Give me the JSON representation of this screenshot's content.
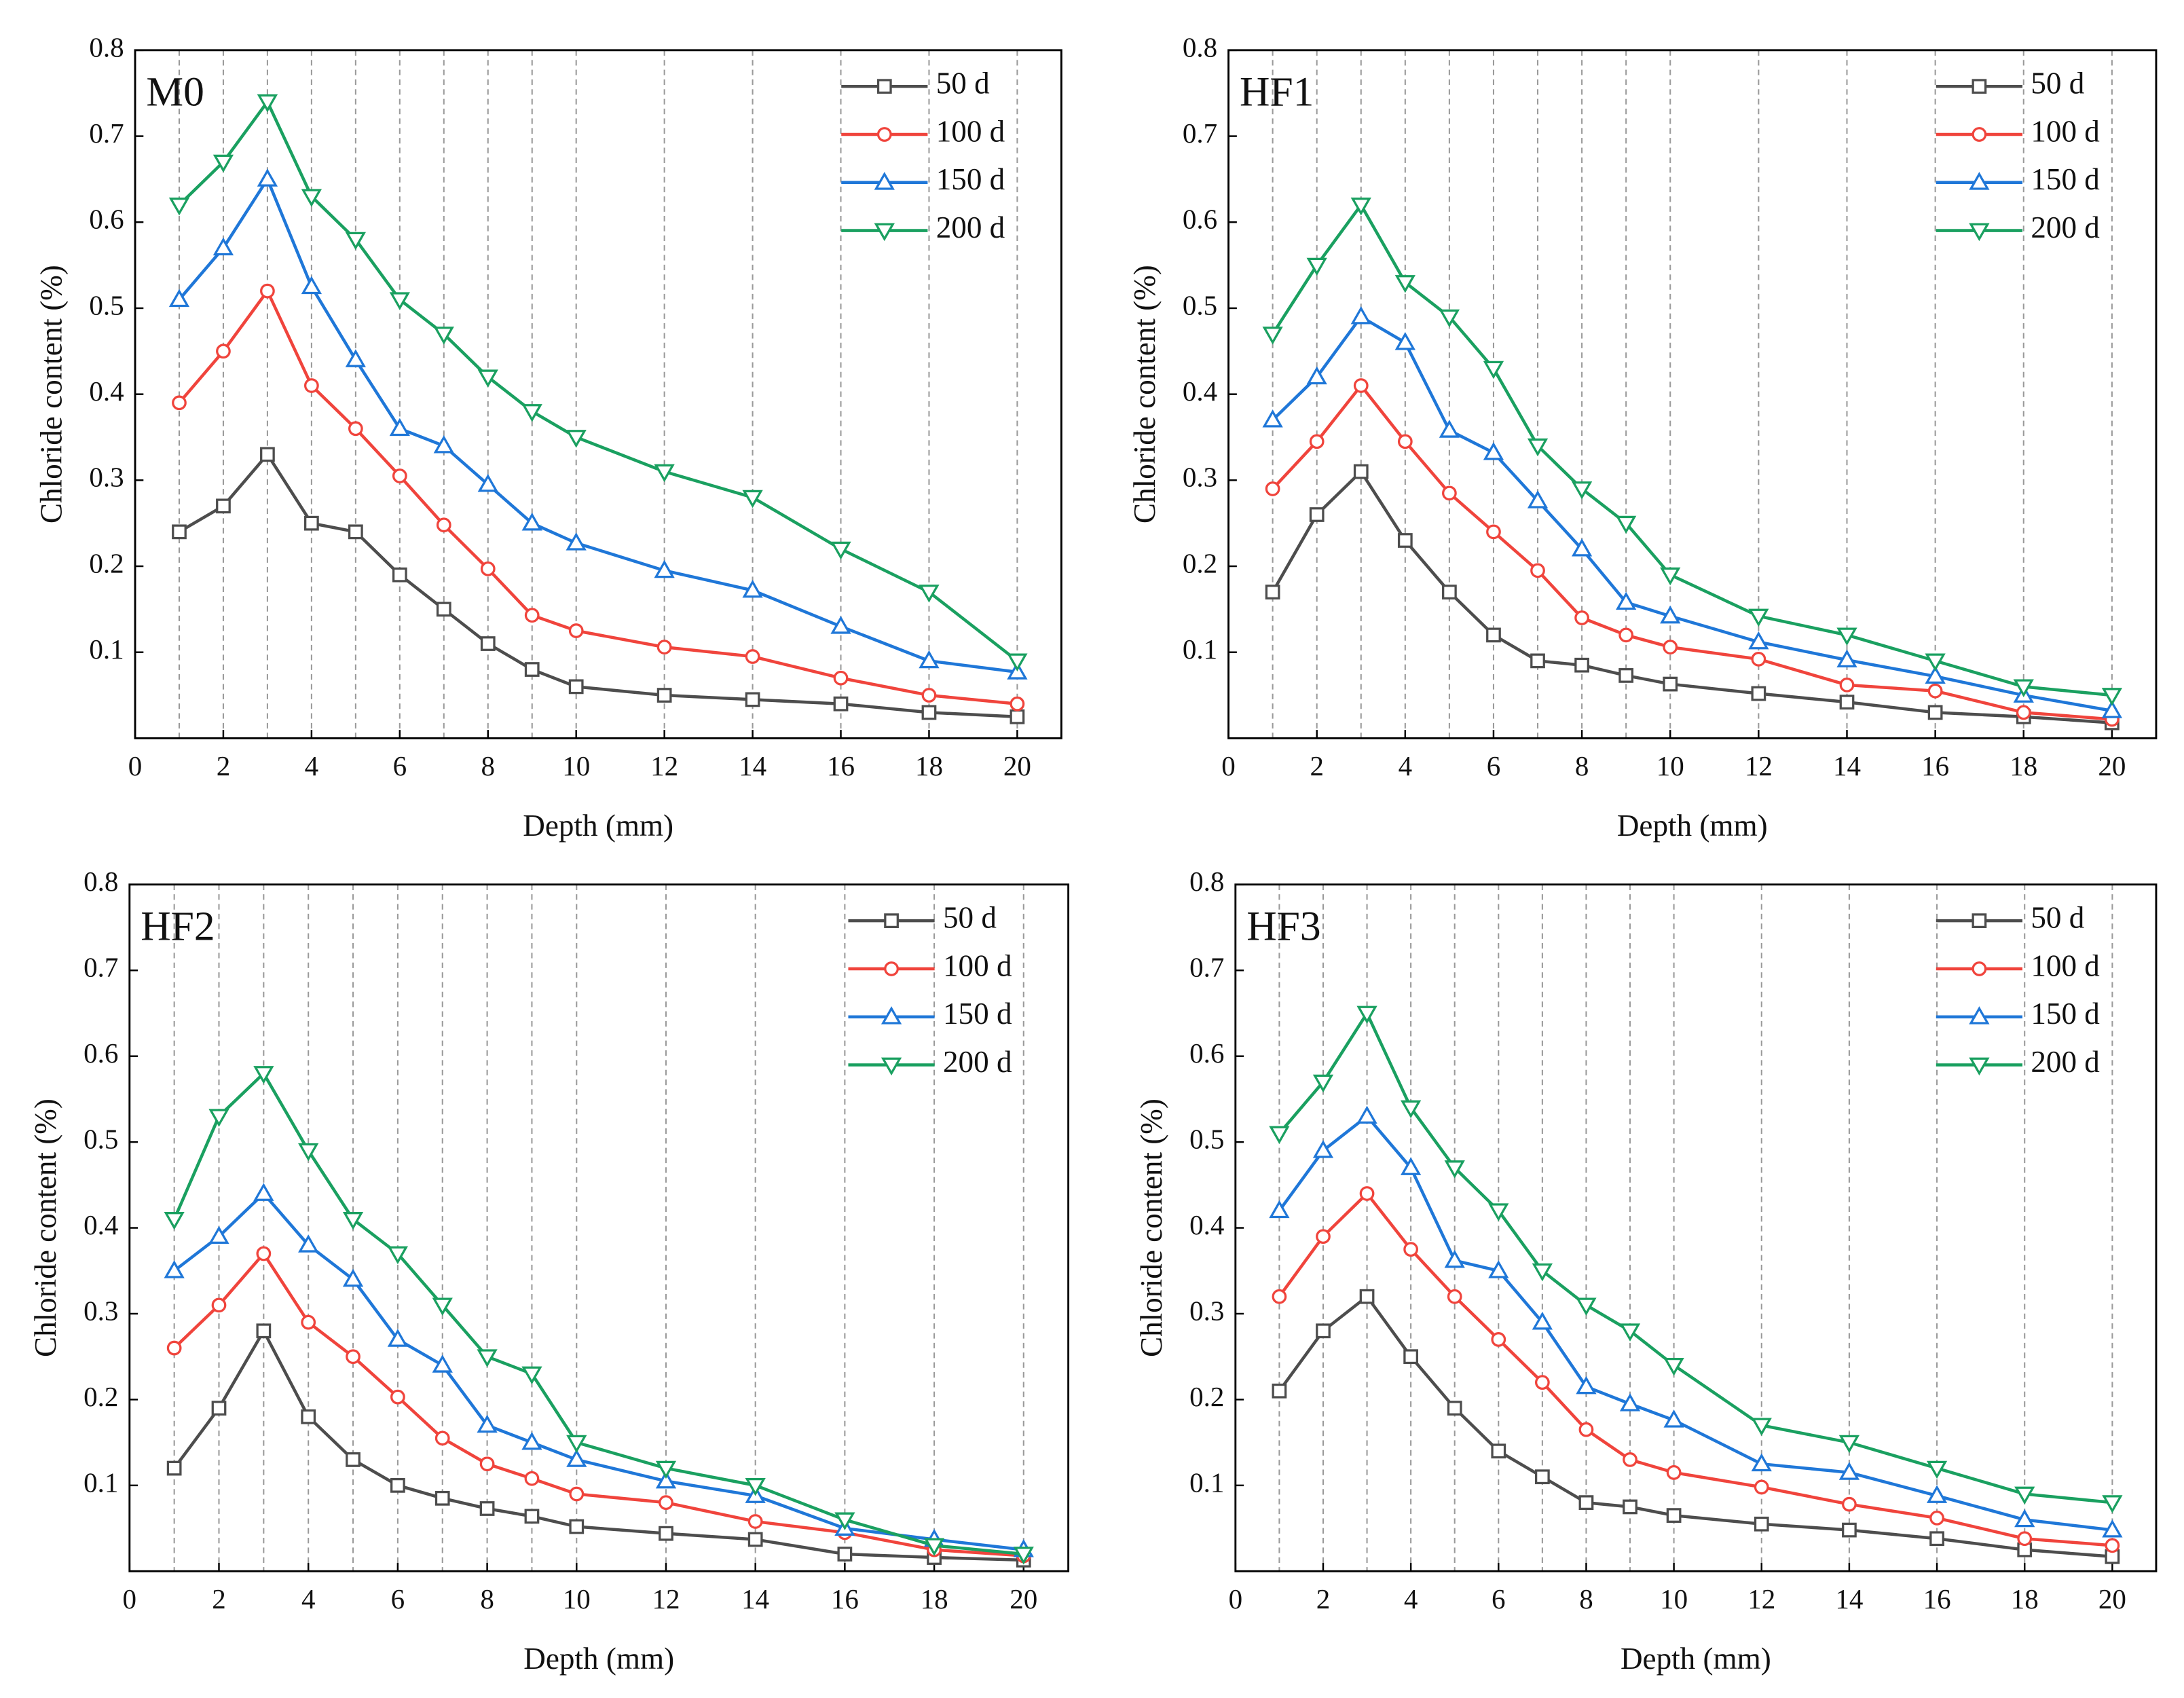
{
  "chart_data": [
    {
      "type": "line",
      "title": "M0",
      "xlabel": "Depth (mm)",
      "ylabel": "Chloride content (%)",
      "x": [
        1,
        2,
        3,
        4,
        5,
        6,
        7,
        8,
        9,
        10,
        12,
        14,
        16,
        18,
        20
      ],
      "xlim": [
        0,
        21
      ],
      "xticks": [
        0,
        2,
        4,
        6,
        8,
        10,
        12,
        14,
        16,
        18,
        20
      ],
      "ylim": [
        0,
        0.8
      ],
      "yticks": [
        0.1,
        0.2,
        0.3,
        0.4,
        0.5,
        0.6,
        0.7,
        0.8
      ],
      "grid": "x",
      "legend": "upper right",
      "series": [
        {
          "name": "50 d",
          "color": "#4d4d4d",
          "marker": "square",
          "values": [
            0.24,
            0.27,
            0.33,
            0.25,
            0.24,
            0.19,
            0.15,
            0.11,
            0.08,
            0.06,
            0.05,
            0.045,
            0.04,
            0.03,
            0.025
          ]
        },
        {
          "name": "100 d",
          "color": "#f0443c",
          "marker": "circle",
          "values": [
            0.39,
            0.45,
            0.52,
            0.41,
            0.36,
            0.305,
            0.248,
            0.197,
            0.143,
            0.125,
            0.106,
            0.095,
            0.07,
            0.05,
            0.04
          ]
        },
        {
          "name": "150 d",
          "color": "#1f77d8",
          "marker": "triangle-up",
          "values": [
            0.51,
            0.57,
            0.65,
            0.525,
            0.44,
            0.36,
            0.34,
            0.295,
            0.25,
            0.227,
            0.195,
            0.172,
            0.13,
            0.09,
            0.077
          ]
        },
        {
          "name": "200 d",
          "color": "#1aa060",
          "marker": "triangle-down",
          "values": [
            0.62,
            0.67,
            0.74,
            0.63,
            0.58,
            0.51,
            0.47,
            0.42,
            0.38,
            0.35,
            0.31,
            0.28,
            0.22,
            0.17,
            0.09
          ]
        }
      ]
    },
    {
      "type": "line",
      "title": "HF1",
      "xlabel": "Depth (mm)",
      "ylabel": "Chloride content (%)",
      "x": [
        1,
        2,
        3,
        4,
        5,
        6,
        7,
        8,
        9,
        10,
        12,
        14,
        16,
        18,
        20
      ],
      "xlim": [
        0,
        21
      ],
      "xticks": [
        0,
        2,
        4,
        6,
        8,
        10,
        12,
        14,
        16,
        18,
        20
      ],
      "ylim": [
        0,
        0.8
      ],
      "yticks": [
        0.1,
        0.2,
        0.3,
        0.4,
        0.5,
        0.6,
        0.7,
        0.8
      ],
      "grid": "x",
      "legend": "upper right",
      "series": [
        {
          "name": "50 d",
          "color": "#4d4d4d",
          "marker": "square",
          "values": [
            0.17,
            0.26,
            0.31,
            0.23,
            0.17,
            0.12,
            0.09,
            0.085,
            0.073,
            0.063,
            0.052,
            0.042,
            0.03,
            0.025,
            0.018
          ]
        },
        {
          "name": "100 d",
          "color": "#f0443c",
          "marker": "circle",
          "values": [
            0.29,
            0.345,
            0.41,
            0.345,
            0.285,
            0.24,
            0.195,
            0.14,
            0.12,
            0.106,
            0.092,
            0.062,
            0.055,
            0.03,
            0.022
          ]
        },
        {
          "name": "150 d",
          "color": "#1f77d8",
          "marker": "triangle-up",
          "values": [
            0.37,
            0.42,
            0.49,
            0.46,
            0.358,
            0.332,
            0.276,
            0.22,
            0.158,
            0.142,
            0.112,
            0.091,
            0.072,
            0.05,
            0.032
          ]
        },
        {
          "name": "200 d",
          "color": "#1aa060",
          "marker": "triangle-down",
          "values": [
            0.47,
            0.55,
            0.62,
            0.53,
            0.49,
            0.43,
            0.34,
            0.29,
            0.25,
            0.19,
            0.142,
            0.12,
            0.09,
            0.06,
            0.05
          ]
        }
      ]
    },
    {
      "type": "line",
      "title": "HF2",
      "xlabel": "Depth (mm)",
      "ylabel": "Chloride content (%)",
      "x": [
        1,
        2,
        3,
        4,
        5,
        6,
        7,
        8,
        9,
        10,
        12,
        14,
        16,
        18,
        20
      ],
      "xlim": [
        0,
        21
      ],
      "xticks": [
        0,
        2,
        4,
        6,
        8,
        10,
        12,
        14,
        16,
        18,
        20
      ],
      "ylim": [
        0,
        0.8
      ],
      "yticks": [
        0.1,
        0.2,
        0.3,
        0.4,
        0.5,
        0.6,
        0.7,
        0.8
      ],
      "grid": "x",
      "legend": "upper right",
      "series": [
        {
          "name": "50 d",
          "color": "#4d4d4d",
          "marker": "square",
          "values": [
            0.12,
            0.19,
            0.28,
            0.18,
            0.13,
            0.1,
            0.085,
            0.073,
            0.064,
            0.052,
            0.044,
            0.037,
            0.02,
            0.016,
            0.013
          ]
        },
        {
          "name": "100 d",
          "color": "#f0443c",
          "marker": "circle",
          "values": [
            0.26,
            0.31,
            0.37,
            0.29,
            0.25,
            0.203,
            0.155,
            0.125,
            0.108,
            0.09,
            0.08,
            0.058,
            0.045,
            0.025,
            0.018
          ]
        },
        {
          "name": "150 d",
          "color": "#1f77d8",
          "marker": "triangle-up",
          "values": [
            0.35,
            0.39,
            0.44,
            0.38,
            0.34,
            0.27,
            0.24,
            0.17,
            0.15,
            0.13,
            0.105,
            0.088,
            0.05,
            0.037,
            0.025
          ]
        },
        {
          "name": "200 d",
          "color": "#1aa060",
          "marker": "triangle-down",
          "values": [
            0.41,
            0.53,
            0.58,
            0.49,
            0.41,
            0.37,
            0.31,
            0.25,
            0.23,
            0.15,
            0.12,
            0.1,
            0.06,
            0.03,
            0.02
          ]
        }
      ]
    },
    {
      "type": "line",
      "title": "HF3",
      "xlabel": "Depth (mm)",
      "ylabel": "Chloride content (%)",
      "x": [
        1,
        2,
        3,
        4,
        5,
        6,
        7,
        8,
        9,
        10,
        12,
        14,
        16,
        18,
        20
      ],
      "xlim": [
        0,
        21
      ],
      "xticks": [
        0,
        2,
        4,
        6,
        8,
        10,
        12,
        14,
        16,
        18,
        20
      ],
      "ylim": [
        0,
        0.8
      ],
      "yticks": [
        0.1,
        0.2,
        0.3,
        0.4,
        0.5,
        0.6,
        0.7,
        0.8
      ],
      "grid": "x",
      "legend": "upper right",
      "series": [
        {
          "name": "50 d",
          "color": "#4d4d4d",
          "marker": "square",
          "values": [
            0.21,
            0.28,
            0.32,
            0.25,
            0.19,
            0.14,
            0.11,
            0.08,
            0.075,
            0.065,
            0.055,
            0.048,
            0.038,
            0.025,
            0.017
          ]
        },
        {
          "name": "100 d",
          "color": "#f0443c",
          "marker": "circle",
          "values": [
            0.32,
            0.39,
            0.44,
            0.375,
            0.32,
            0.27,
            0.22,
            0.165,
            0.13,
            0.115,
            0.098,
            0.078,
            0.062,
            0.038,
            0.03
          ]
        },
        {
          "name": "150 d",
          "color": "#1f77d8",
          "marker": "triangle-up",
          "values": [
            0.42,
            0.49,
            0.53,
            0.47,
            0.362,
            0.35,
            0.29,
            0.215,
            0.195,
            0.176,
            0.125,
            0.115,
            0.088,
            0.06,
            0.048
          ]
        },
        {
          "name": "200 d",
          "color": "#1aa060",
          "marker": "triangle-down",
          "values": [
            0.51,
            0.57,
            0.65,
            0.54,
            0.47,
            0.42,
            0.35,
            0.31,
            0.28,
            0.24,
            0.17,
            0.15,
            0.12,
            0.09,
            0.08
          ]
        }
      ]
    }
  ]
}
